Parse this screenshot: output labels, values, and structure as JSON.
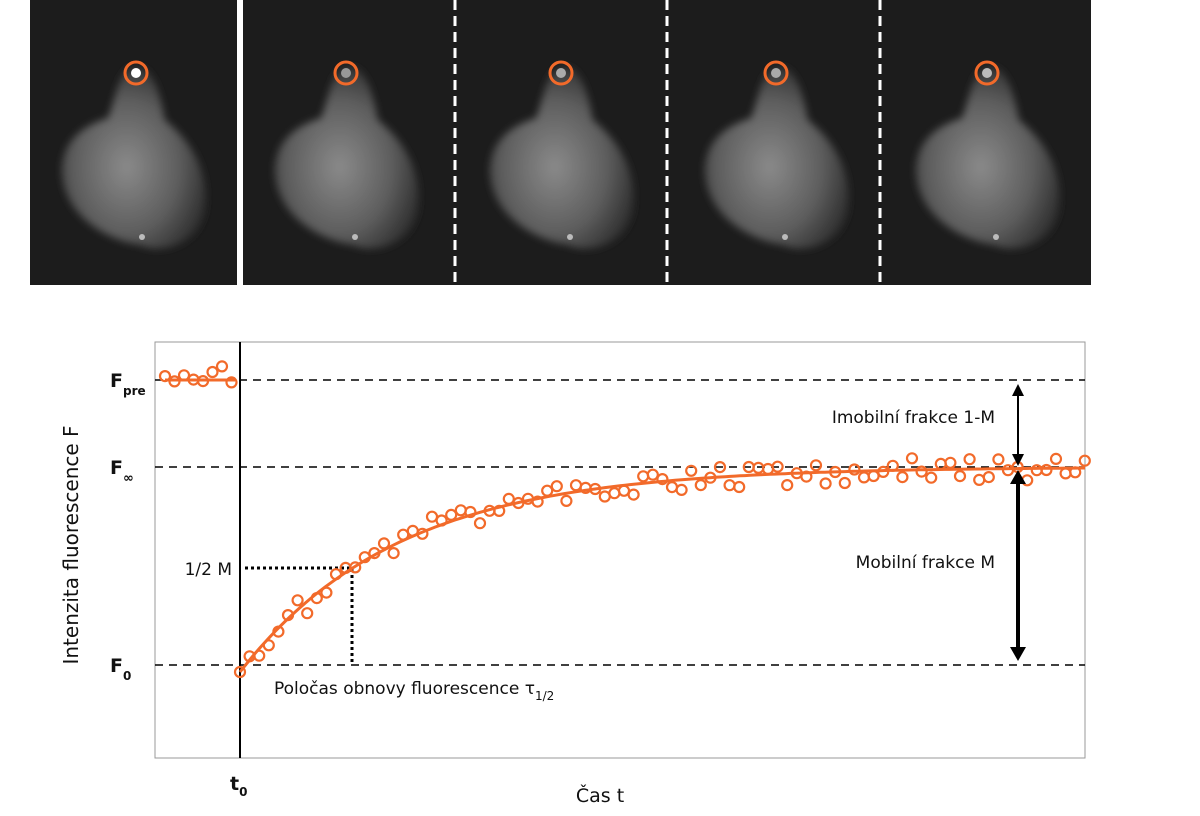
{
  "plot": {
    "y_axis_label": "Intenzita fluorescence F",
    "x_axis_label": "Čas t",
    "f_pre": {
      "main": "F",
      "sub": "pre"
    },
    "f_inf": {
      "main": "F",
      "sub": "∞"
    },
    "f_0": {
      "main": "F",
      "sub": "0"
    },
    "t_0": {
      "main": "t",
      "sub": "0"
    },
    "half_m": "1/2 M",
    "half_time": {
      "main": "Poločas obnovy fluorescence τ",
      "sub": "1/2"
    },
    "immobile": "Imobilní frakce 1-M",
    "mobile": "Mobilní frakce M"
  }
}
